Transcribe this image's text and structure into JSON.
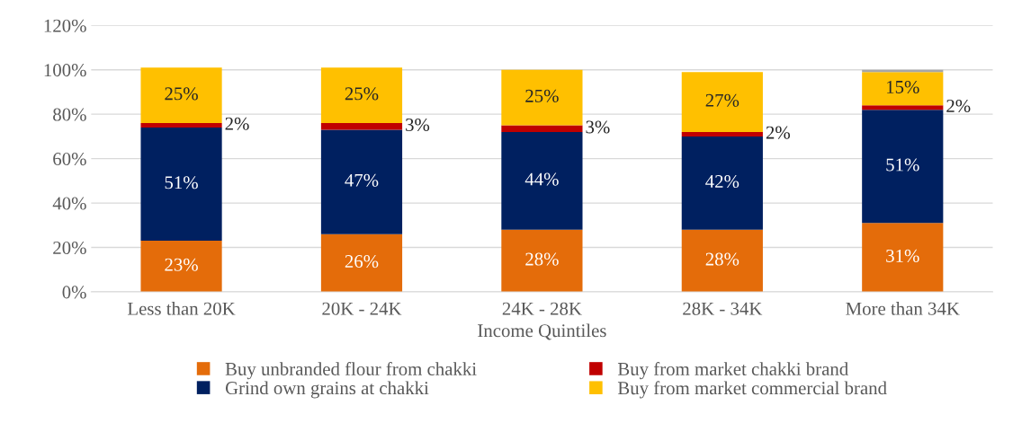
{
  "chart_data": {
    "type": "bar",
    "stacked": true,
    "xlabel": "Income Quintiles",
    "categories": [
      "Less than 20K",
      "20K - 24K",
      "24K - 28K",
      "28K - 34K",
      "More than 34K"
    ],
    "series": [
      {
        "name": "Buy unbranded flour from chakki",
        "color": "#e46c0a",
        "values": [
          23,
          26,
          28,
          28,
          31
        ],
        "value_labels": [
          "23%",
          "26%",
          "28%",
          "28%",
          "31%"
        ]
      },
      {
        "name": "Grind own grains at chakki",
        "color": "#002060",
        "values": [
          51,
          47,
          44,
          42,
          51
        ],
        "value_labels": [
          "51%",
          "47%",
          "44%",
          "42%",
          "51%"
        ]
      },
      {
        "name": "Buy from market chakki brand",
        "color": "#c00000",
        "values": [
          2,
          3,
          3,
          2,
          2
        ],
        "value_labels": [
          "2%",
          "3%",
          "3%",
          "2%",
          "2%"
        ]
      },
      {
        "name": "Buy from market commercial brand",
        "color": "#ffc000",
        "values": [
          25,
          25,
          25,
          27,
          15
        ],
        "value_labels": [
          "25%",
          "25%",
          "25%",
          "27%",
          "15%"
        ]
      },
      {
        "color": "#a6a6a6",
        "values": [
          null,
          null,
          null,
          null,
          1
        ]
      }
    ],
    "ylim": [
      0,
      120
    ],
    "yticks": [
      {
        "value": 0,
        "label": "0%"
      },
      {
        "value": 20,
        "label": "20%"
      },
      {
        "value": 40,
        "label": "40%"
      },
      {
        "value": 60,
        "label": "60%"
      },
      {
        "value": 80,
        "label": "80%"
      },
      {
        "value": 100,
        "label": "100%"
      },
      {
        "value": 120,
        "label": "120%"
      }
    ],
    "grid": "y",
    "legend": "bottom"
  }
}
